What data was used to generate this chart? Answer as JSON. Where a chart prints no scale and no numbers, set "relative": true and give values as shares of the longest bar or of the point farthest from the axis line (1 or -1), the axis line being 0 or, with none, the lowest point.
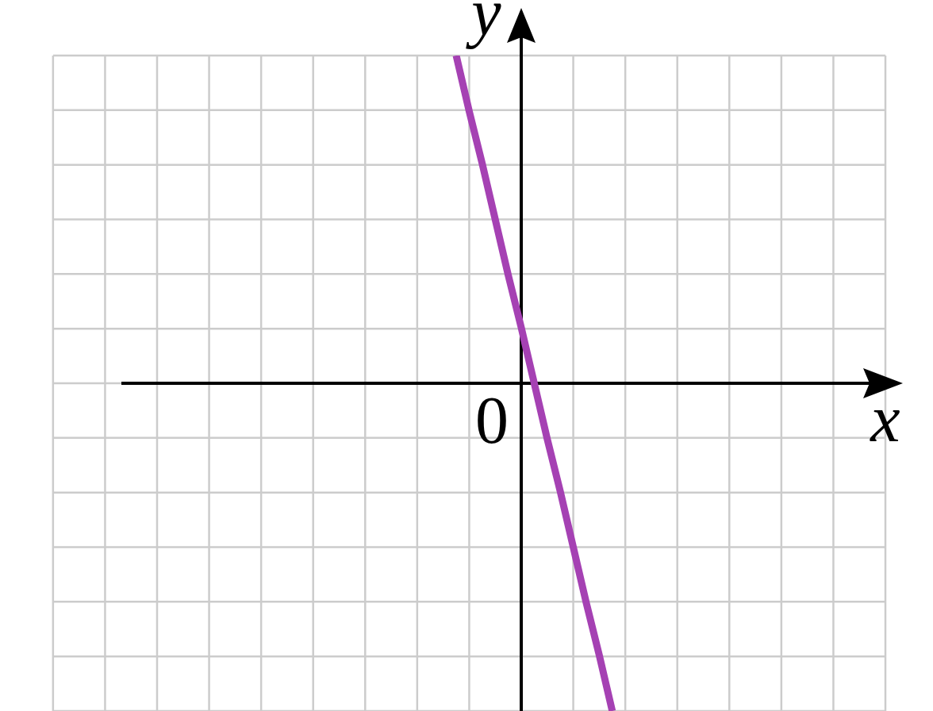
{
  "chart_data": {
    "type": "line",
    "relative": true,
    "xlabel": "x",
    "ylabel": "y",
    "annotations": [
      "0"
    ],
    "categories": [
      null,
      null,
      null,
      null,
      null,
      null,
      null,
      null,
      null,
      null,
      null,
      null,
      null,
      null,
      null,
      null,
      null,
      null,
      null,
      null,
      null,
      null,
      null,
      null,
      null,
      null,
      null,
      null,
      null,
      null,
      null,
      null,
      null,
      null,
      null,
      null,
      null,
      null,
      null,
      null,
      null,
      null,
      null,
      null,
      null,
      null,
      null,
      null,
      null,
      null,
      null,
      null,
      null,
      null,
      null,
      null,
      null
    ],
    "values": [
      null,
      null,
      null,
      null,
      null,
      null,
      null,
      null,
      null,
      null,
      null,
      null,
      null,
      null,
      null,
      null,
      null,
      null,
      null,
      null,
      null,
      null,
      null,
      1,
      0.83,
      0.67,
      0.5,
      0.33,
      0.17,
      0,
      -0.17,
      -0.33,
      -0.5,
      -0.67,
      -0.83,
      -1,
      null,
      null,
      null,
      null,
      null,
      null,
      null,
      null,
      null,
      null,
      null,
      null,
      null,
      null,
      null,
      null,
      null,
      null,
      null,
      null,
      null
    ],
    "color": "#a541b3",
    "grid": true
  }
}
